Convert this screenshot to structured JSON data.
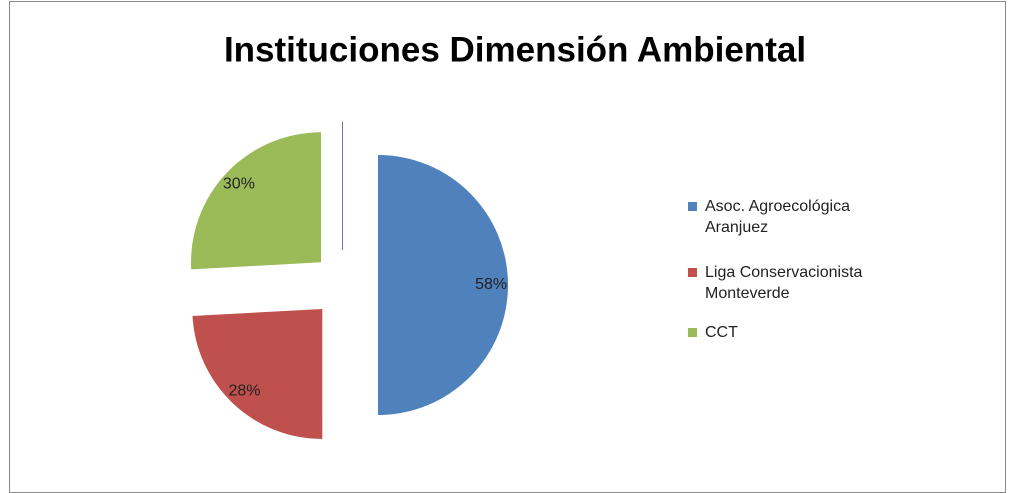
{
  "chart_data": {
    "type": "pie",
    "title": "Instituciones Dimensión Ambiental",
    "categories": [
      "Asoc. Agroecológica Aranjuez",
      "Liga Conservacionista Monteverde",
      "CCT"
    ],
    "values": [
      58,
      28,
      30
    ],
    "value_labels": [
      "58%",
      "28%",
      "30%"
    ],
    "colors": [
      "#4f81bd",
      "#c0504d",
      "#9bbb59"
    ],
    "exploded": true,
    "legend": "right"
  }
}
